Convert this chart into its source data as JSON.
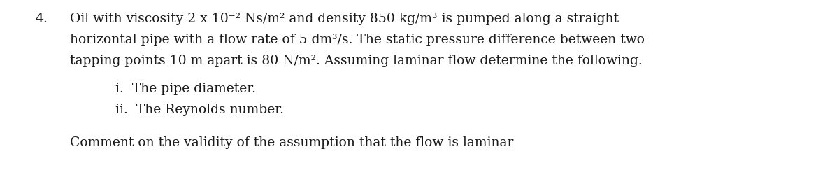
{
  "background_color": "#ffffff",
  "number": "4.",
  "line1": "Oil with viscosity 2 x 10⁻² Ns/m² and density 850 kg/m³ is pumped along a straight",
  "line2": "horizontal pipe with a flow rate of 5 dm³/s. The static pressure difference between two",
  "line3": "tapping points 10 m apart is 80 N/m². Assuming laminar flow determine the following.",
  "item_i": "i.  The pipe diameter.",
  "item_ii": "ii.  The Reynolds number.",
  "comment": "Comment on the validity of the assumption that the flow is laminar",
  "font_size": 13.5,
  "font_family": "DejaVu Serif",
  "text_color": "#1a1a1a",
  "fig_width": 12.0,
  "fig_height": 2.43,
  "dpi": 100
}
